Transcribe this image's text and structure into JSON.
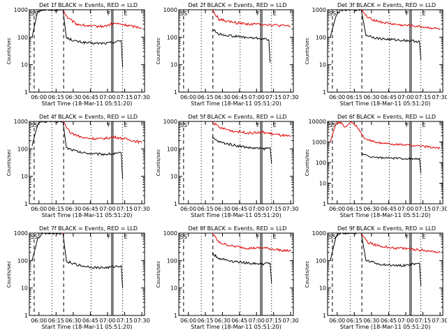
{
  "figure": {
    "xlabel": "Start Time (18-Mar-11 05:51:20)",
    "ylabel": "Counts/sec",
    "marker_s": "S",
    "marker_f": "F",
    "marker_e": "E",
    "colors": {
      "events": "#000000",
      "lld": "#e00000",
      "axes": "#000000"
    }
  },
  "chart_data": [
    {
      "type": "line",
      "title": "Det 1f  BLACK = Events, RED = LLD",
      "xlabel": "Start Time (18-Mar-11 05:51:20)",
      "ylabel": "Counts/sec",
      "xticks": [
        "06:00",
        "06:15",
        "06:30",
        "06:45",
        "07:00",
        "07:15",
        "07:30"
      ],
      "yticks": [
        "1",
        "10",
        "100",
        "1000"
      ],
      "ylim": [
        1,
        1000
      ],
      "yscale": "log",
      "series": [
        {
          "name": "BLACK = Events",
          "values": [
            [
              5.9,
              100
            ],
            [
              5.98,
              900
            ],
            [
              6.05,
              1000
            ],
            [
              6.35,
              1000
            ],
            [
              6.4,
              95
            ],
            [
              6.55,
              70
            ],
            [
              6.75,
              60
            ],
            [
              7.0,
              60
            ],
            [
              7.2,
              75
            ],
            [
              7.22,
              8
            ]
          ]
        },
        {
          "name": "RED = LLD",
          "values": [
            [
              6.35,
              1000
            ],
            [
              6.42,
              500
            ],
            [
              6.55,
              300
            ],
            [
              6.75,
              250
            ],
            [
              6.95,
              250
            ],
            [
              7.1,
              320
            ],
            [
              7.25,
              280
            ],
            [
              7.5,
              220
            ]
          ]
        }
      ]
    },
    {
      "type": "line",
      "title": "Det 2f  BLACK = Events, RED = LLD",
      "xlabel": "Start Time (18-Mar-11 05:51:20)",
      "ylabel": "Counts/sec",
      "xticks": [
        "06:00",
        "06:15",
        "06:30",
        "06:45",
        "07:00",
        "07:15",
        "07:30"
      ],
      "yticks": [
        "1",
        "10",
        "100",
        "1000"
      ],
      "ylim": [
        1,
        1000
      ],
      "yscale": "log",
      "series": [
        {
          "name": "BLACK = Events",
          "values": [
            [
              6.35,
              200
            ],
            [
              6.45,
              130
            ],
            [
              6.65,
              110
            ],
            [
              6.9,
              95
            ],
            [
              7.05,
              90
            ],
            [
              7.18,
              80
            ],
            [
              7.2,
              12
            ]
          ]
        },
        {
          "name": "RED = LLD",
          "values": [
            [
              6.35,
              1000
            ],
            [
              6.45,
              450
            ],
            [
              6.65,
              350
            ],
            [
              6.9,
              300
            ],
            [
              7.1,
              300
            ],
            [
              7.3,
              270
            ],
            [
              7.5,
              250
            ]
          ]
        }
      ]
    },
    {
      "type": "line",
      "title": "Det 3f  BLACK = Events, RED = LLD",
      "xlabel": "Start Time (18-Mar-11 05:51:20)",
      "ylabel": "Counts/sec",
      "xticks": [
        "06:00",
        "06:15",
        "06:30",
        "06:45",
        "07:00",
        "07:15",
        "07:30"
      ],
      "yticks": [
        "1",
        "10",
        "100",
        "1000"
      ],
      "ylim": [
        1,
        1000
      ],
      "yscale": "log",
      "series": [
        {
          "name": "BLACK = Events",
          "values": [
            [
              5.9,
              100
            ],
            [
              5.98,
              600
            ],
            [
              6.05,
              1000
            ],
            [
              6.35,
              1000
            ],
            [
              6.42,
              120
            ],
            [
              6.6,
              90
            ],
            [
              6.85,
              80
            ],
            [
              7.05,
              75
            ],
            [
              7.2,
              70
            ],
            [
              7.22,
              15
            ]
          ]
        },
        {
          "name": "RED = LLD",
          "values": [
            [
              6.35,
              1000
            ],
            [
              6.45,
              500
            ],
            [
              6.65,
              350
            ],
            [
              6.9,
              280
            ],
            [
              7.1,
              260
            ],
            [
              7.3,
              230
            ],
            [
              7.5,
              200
            ]
          ]
        }
      ]
    },
    {
      "type": "line",
      "title": "Det 4f  BLACK = Events, RED = LLD",
      "xlabel": "Start Time (18-Mar-11 05:51:20)",
      "ylabel": "Counts/sec",
      "xticks": [
        "06:00",
        "06:15",
        "06:30",
        "06:45",
        "07:00",
        "07:15",
        "07:30"
      ],
      "yticks": [
        "1",
        "10",
        "100",
        "1000"
      ],
      "ylim": [
        1,
        1000
      ],
      "yscale": "log",
      "series": [
        {
          "name": "BLACK = Events",
          "values": [
            [
              5.9,
              130
            ],
            [
              5.98,
              800
            ],
            [
              6.05,
              1000
            ],
            [
              6.35,
              1000
            ],
            [
              6.4,
              110
            ],
            [
              6.6,
              75
            ],
            [
              6.85,
              65
            ],
            [
              7.0,
              65
            ],
            [
              7.2,
              70
            ],
            [
              7.22,
              8
            ]
          ]
        },
        {
          "name": "RED = LLD",
          "values": [
            [
              6.35,
              1000
            ],
            [
              6.45,
              400
            ],
            [
              6.65,
              250
            ],
            [
              6.9,
              230
            ],
            [
              7.1,
              270
            ],
            [
              7.3,
              220
            ],
            [
              7.5,
              170
            ]
          ]
        }
      ]
    },
    {
      "type": "line",
      "title": "Det 5f  BLACK = Events, RED = LLD",
      "xlabel": "Start Time (18-Mar-11 05:51:20)",
      "ylabel": "Counts/sec",
      "xticks": [
        "06:00",
        "06:15",
        "06:30",
        "06:45",
        "07:00",
        "07:15",
        "07:30"
      ],
      "yticks": [
        "1",
        "10",
        "100",
        "1000"
      ],
      "ylim": [
        1,
        1000
      ],
      "yscale": "log",
      "series": [
        {
          "name": "BLACK = Events",
          "values": [
            [
              6.35,
              250
            ],
            [
              6.45,
              180
            ],
            [
              6.65,
              140
            ],
            [
              6.9,
              110
            ],
            [
              7.1,
              100
            ],
            [
              7.2,
              110
            ],
            [
              7.22,
              30
            ]
          ]
        },
        {
          "name": "RED = LLD",
          "values": [
            [
              6.35,
              1000
            ],
            [
              6.45,
              600
            ],
            [
              6.65,
              450
            ],
            [
              6.9,
              380
            ],
            [
              7.1,
              400
            ],
            [
              7.3,
              330
            ],
            [
              7.5,
              280
            ]
          ]
        }
      ]
    },
    {
      "type": "line",
      "title": "Det 6f  BLACK = Events, RED = LLD",
      "xlabel": "Start Time (18-Mar-11 05:51:20)",
      "ylabel": "Counts/sec",
      "xticks": [
        "06:00",
        "06:15",
        "06:30",
        "06:45",
        "07:00",
        "07:15",
        "07:30"
      ],
      "yticks": [
        "1",
        "10",
        "100",
        "1000",
        "10000"
      ],
      "ylim": [
        1,
        10000
      ],
      "yscale": "log",
      "series": [
        {
          "name": "BLACK = Events",
          "values": [
            [
              6.35,
              300
            ],
            [
              6.45,
              200
            ],
            [
              6.65,
              170
            ],
            [
              6.9,
              160
            ],
            [
              7.1,
              150
            ],
            [
              7.2,
              160
            ],
            [
              7.22,
              30
            ]
          ]
        },
        {
          "name": "RED = LLD",
          "values": [
            [
              5.9,
              1000
            ],
            [
              5.98,
              8000
            ],
            [
              6.05,
              9000
            ],
            [
              6.12,
              5000
            ],
            [
              6.2,
              9500
            ],
            [
              6.28,
              6000
            ],
            [
              6.4,
              1500
            ],
            [
              6.6,
              900
            ],
            [
              6.9,
              750
            ],
            [
              7.2,
              650
            ],
            [
              7.5,
              500
            ]
          ]
        }
      ]
    },
    {
      "type": "line",
      "title": "Det 7f  BLACK = Events, RED = LLD",
      "xlabel": "Start Time (18-Mar-11 05:51:20)",
      "ylabel": "Counts/sec",
      "xticks": [
        "06:00",
        "06:15",
        "06:30",
        "06:45",
        "07:00",
        "07:15",
        "07:30"
      ],
      "yticks": [
        "1",
        "10",
        "100",
        "1000"
      ],
      "ylim": [
        1,
        1000
      ],
      "yscale": "log",
      "series": [
        {
          "name": "BLACK = Events",
          "values": [
            [
              5.9,
              100
            ],
            [
              5.98,
              600
            ],
            [
              6.05,
              1000
            ],
            [
              6.35,
              1000
            ],
            [
              6.4,
              95
            ],
            [
              6.6,
              65
            ],
            [
              6.85,
              55
            ],
            [
              7.0,
              55
            ],
            [
              7.2,
              65
            ],
            [
              7.22,
              10
            ]
          ]
        },
        {
          "name": "RED = LLD",
          "values": [
            [
              6.35,
              1000
            ],
            [
              6.37,
              1000
            ]
          ]
        }
      ]
    },
    {
      "type": "line",
      "title": "Det 8f  BLACK = Events, RED = LLD",
      "xlabel": "Start Time (18-Mar-11 05:51:20)",
      "ylabel": "Counts/sec",
      "xticks": [
        "06:00",
        "06:15",
        "06:30",
        "06:45",
        "07:00",
        "07:15",
        "07:30"
      ],
      "yticks": [
        "1",
        "10",
        "100",
        "1000"
      ],
      "ylim": [
        1,
        1000
      ],
      "yscale": "log",
      "series": [
        {
          "name": "BLACK = Events",
          "values": [
            [
              6.35,
              180
            ],
            [
              6.45,
              120
            ],
            [
              6.65,
              95
            ],
            [
              6.9,
              80
            ],
            [
              7.1,
              75
            ],
            [
              7.2,
              80
            ],
            [
              7.22,
              15
            ]
          ]
        },
        {
          "name": "RED = LLD",
          "values": [
            [
              6.35,
              1000
            ],
            [
              6.45,
              450
            ],
            [
              6.65,
              330
            ],
            [
              6.9,
              280
            ],
            [
              7.1,
              290
            ],
            [
              7.3,
              250
            ],
            [
              7.5,
              220
            ]
          ]
        }
      ]
    },
    {
      "type": "line",
      "title": "Det 9f  BLACK = Events, RED = LLD",
      "xlabel": "Start Time (18-Mar-11 05:51:20)",
      "ylabel": "Counts/sec",
      "xticks": [
        "06:00",
        "06:15",
        "06:30",
        "06:45",
        "07:00",
        "07:15",
        "07:30"
      ],
      "yticks": [
        "1",
        "10",
        "100",
        "1000"
      ],
      "ylim": [
        1,
        1000
      ],
      "yscale": "log",
      "series": [
        {
          "name": "BLACK = Events",
          "values": [
            [
              5.9,
              100
            ],
            [
              5.98,
              700
            ],
            [
              6.05,
              1000
            ],
            [
              6.35,
              1000
            ],
            [
              6.42,
              100
            ],
            [
              6.6,
              75
            ],
            [
              6.85,
              65
            ],
            [
              7.05,
              70
            ],
            [
              7.2,
              80
            ],
            [
              7.22,
              12
            ]
          ]
        },
        {
          "name": "RED = LLD",
          "values": [
            [
              6.35,
              1000
            ],
            [
              6.45,
              450
            ],
            [
              6.65,
              320
            ],
            [
              6.9,
              280
            ],
            [
              7.1,
              260
            ],
            [
              7.3,
              230
            ],
            [
              7.5,
              200
            ]
          ]
        }
      ]
    }
  ]
}
